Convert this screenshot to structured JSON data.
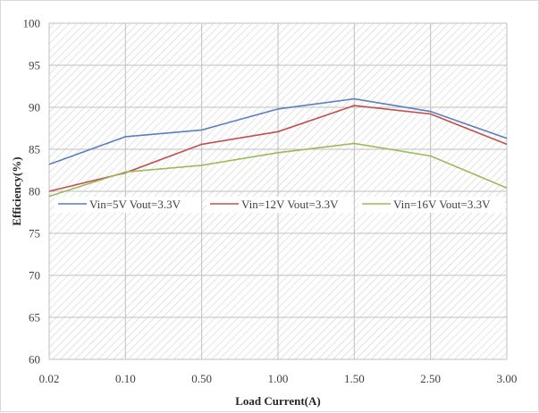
{
  "chart_data": {
    "type": "line",
    "title": "",
    "xlabel": "Load Current(A)",
    "ylabel": "Efficiency(%)",
    "categories": [
      "0.02",
      "0.10",
      "0.50",
      "1.00",
      "1.50",
      "2.50",
      "3.00"
    ],
    "ylim": [
      60,
      100
    ],
    "yticks": [
      60,
      65,
      70,
      75,
      80,
      85,
      90,
      95,
      100
    ],
    "grid": true,
    "legend_position": "inside-center",
    "series": [
      {
        "name": "Vin=5V Vout=3.3V",
        "color": "#5b7fc0",
        "values": [
          83.2,
          86.5,
          87.3,
          89.8,
          91.0,
          89.5,
          86.3
        ]
      },
      {
        "name": "Vin=12V Vout=3.3V",
        "color": "#c0504d",
        "values": [
          80.0,
          82.2,
          85.6,
          87.1,
          90.2,
          89.2,
          85.6
        ]
      },
      {
        "name": "Vin=16V Vout=3.3V",
        "color": "#9bbb59",
        "values": [
          79.4,
          82.3,
          83.1,
          84.6,
          85.7,
          84.2,
          80.4
        ]
      }
    ]
  }
}
